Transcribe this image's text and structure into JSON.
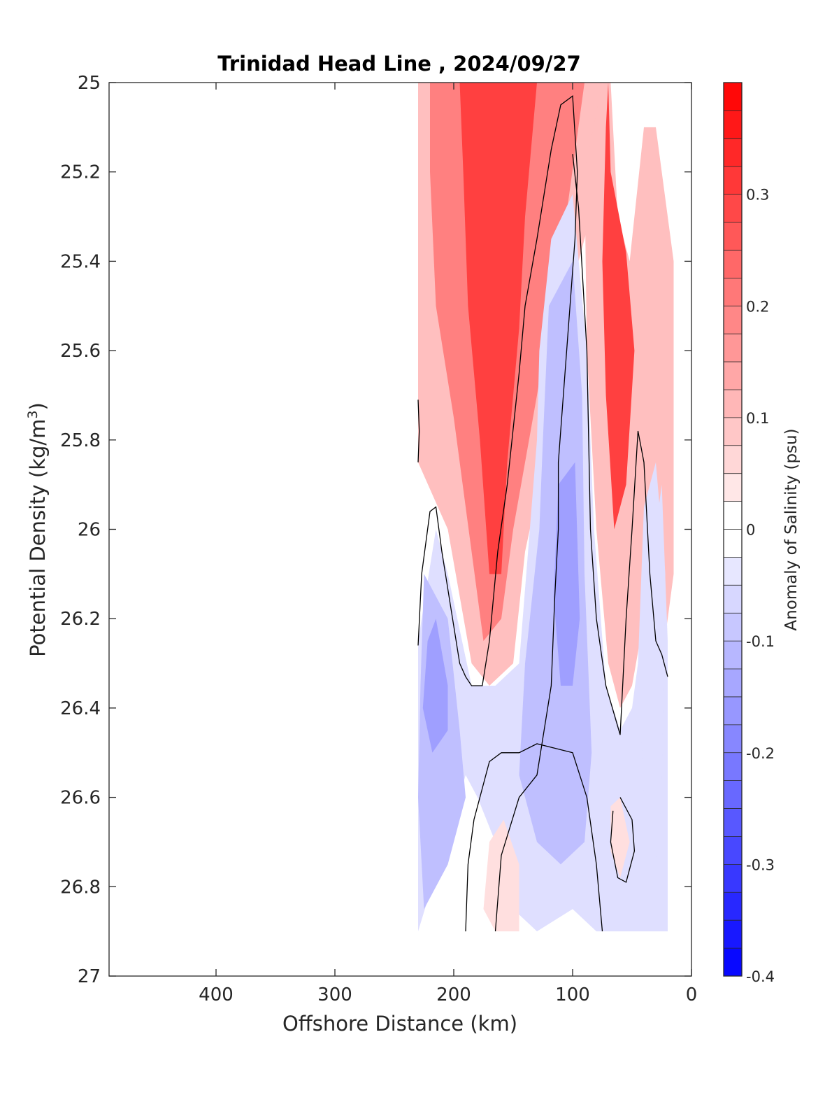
{
  "chart_data": {
    "type": "contour-section",
    "title": "Trinidad Head Line , 2024/09/27",
    "xlabel": "Offshore Distance (km)",
    "ylabel": "Potential Density (kg/m",
    "ylabel_sup": "3",
    "ylabel_close": ")",
    "xlim": [
      490,
      0
    ],
    "ylim": [
      25,
      27
    ],
    "x_reversed": true,
    "y_reversed": true,
    "xticks": [
      400,
      300,
      200,
      100,
      0
    ],
    "yticks": [
      25,
      25.2,
      25.4,
      25.6,
      25.8,
      26,
      26.2,
      26.4,
      26.6,
      26.8,
      27
    ],
    "ytick_labels": [
      "25",
      "25.2",
      "25.4",
      "25.6",
      "25.8",
      "26",
      "26.2",
      "26.4",
      "26.6",
      "26.8",
      "27"
    ],
    "colorbar": {
      "label": "Anomaly of Salinity (psu)",
      "range": [
        -0.4,
        0.4
      ],
      "step": 0.025,
      "ticks": [
        0.3,
        0.2,
        0.1,
        0,
        -0.1,
        -0.2,
        -0.3,
        -0.4
      ],
      "tick_labels": [
        "0.3",
        "0.2",
        "0.1",
        "0",
        "-0.1",
        "-0.2",
        "-0.3",
        "-0.4"
      ]
    },
    "colors": {
      "positive": "#ff0000",
      "negative": "#0000ff",
      "zero": "#ffffff",
      "contour": "#000000"
    },
    "regions": [
      {
        "kind": "positive",
        "value": 0.1,
        "points": [
          [
            230,
            25
          ],
          [
            75,
            25
          ],
          [
            80,
            25.25
          ],
          [
            110,
            25.55
          ],
          [
            120,
            25.8
          ],
          [
            140,
            26.05
          ],
          [
            150,
            26.3
          ],
          [
            170,
            26.35
          ],
          [
            185,
            26.3
          ],
          [
            205,
            26
          ],
          [
            230,
            25.85
          ]
        ]
      },
      {
        "kind": "positive",
        "value": 0.2,
        "points": [
          [
            220,
            25
          ],
          [
            90,
            25
          ],
          [
            108,
            25.35
          ],
          [
            130,
            25.7
          ],
          [
            150,
            26.0
          ],
          [
            160,
            26.2
          ],
          [
            175,
            26.25
          ],
          [
            185,
            26.05
          ],
          [
            200,
            25.75
          ],
          [
            215,
            25.5
          ],
          [
            220,
            25.2
          ]
        ]
      },
      {
        "kind": "positive",
        "value": 0.3,
        "points": [
          [
            195,
            25
          ],
          [
            130,
            25
          ],
          [
            140,
            25.3
          ],
          [
            145,
            25.55
          ],
          [
            155,
            25.85
          ],
          [
            160,
            26.1
          ],
          [
            170,
            26.1
          ],
          [
            178,
            25.8
          ],
          [
            188,
            25.5
          ],
          [
            192,
            25.2
          ]
        ]
      },
      {
        "kind": "positive",
        "value": 0.1,
        "points": [
          [
            75,
            25
          ],
          [
            68,
            25
          ],
          [
            62,
            25.3
          ],
          [
            52,
            25.4
          ],
          [
            40,
            25.1
          ],
          [
            30,
            25.1
          ],
          [
            15,
            25.4
          ],
          [
            15,
            26.1
          ],
          [
            25,
            26.3
          ],
          [
            40,
            26.2
          ],
          [
            50,
            26.35
          ],
          [
            60,
            26.4
          ],
          [
            70,
            26.3
          ],
          [
            80,
            26.0
          ],
          [
            88,
            25.6
          ],
          [
            90,
            25.2
          ]
        ]
      },
      {
        "kind": "positive",
        "value": 0.3,
        "points": [
          [
            70,
            25
          ],
          [
            68,
            25.2
          ],
          [
            55,
            25.38
          ],
          [
            48,
            25.6
          ],
          [
            55,
            25.9
          ],
          [
            65,
            26.0
          ],
          [
            72,
            25.7
          ],
          [
            75,
            25.4
          ],
          [
            72,
            25.1
          ]
        ]
      },
      {
        "kind": "negative",
        "value": -0.05,
        "points": [
          [
            130,
            25.8
          ],
          [
            128,
            25.6
          ],
          [
            118,
            25.35
          ],
          [
            100,
            25.25
          ],
          [
            88,
            25.6
          ],
          [
            82,
            26.0
          ],
          [
            72,
            26.35
          ],
          [
            60,
            26.45
          ],
          [
            50,
            26.4
          ],
          [
            40,
            26.2
          ],
          [
            30,
            26.0
          ],
          [
            25,
            25.9
          ],
          [
            20,
            26.25
          ],
          [
            20,
            26.9
          ],
          [
            80,
            26.9
          ],
          [
            100,
            26.85
          ],
          [
            130,
            26.9
          ],
          [
            150,
            26.85
          ],
          [
            165,
            26.7
          ],
          [
            180,
            26.6
          ],
          [
            190,
            26.55
          ],
          [
            230,
            26.9
          ],
          [
            230,
            26.25
          ],
          [
            215,
            26.0
          ],
          [
            205,
            26.1
          ],
          [
            185,
            26.35
          ],
          [
            165,
            26.35
          ],
          [
            145,
            26.3
          ]
        ]
      },
      {
        "kind": "negative",
        "value": -0.1,
        "points": [
          [
            120,
            25.5
          ],
          [
            100,
            25.4
          ],
          [
            92,
            25.7
          ],
          [
            90,
            26.1
          ],
          [
            84,
            26.5
          ],
          [
            90,
            26.7
          ],
          [
            110,
            26.75
          ],
          [
            130,
            26.7
          ],
          [
            145,
            26.55
          ],
          [
            140,
            26.3
          ],
          [
            128,
            26.0
          ],
          [
            125,
            25.8
          ]
        ]
      },
      {
        "kind": "negative",
        "value": -0.15,
        "points": [
          [
            112,
            25.9
          ],
          [
            98,
            25.85
          ],
          [
            94,
            26.2
          ],
          [
            100,
            26.35
          ],
          [
            110,
            26.35
          ],
          [
            116,
            26.15
          ]
        ]
      },
      {
        "kind": "negative",
        "value": -0.1,
        "points": [
          [
            225,
            26.1
          ],
          [
            205,
            26.2
          ],
          [
            195,
            26.45
          ],
          [
            190,
            26.6
          ],
          [
            205,
            26.75
          ],
          [
            225,
            26.85
          ],
          [
            230,
            26.6
          ],
          [
            228,
            26.35
          ]
        ]
      },
      {
        "kind": "negative",
        "value": -0.15,
        "points": [
          [
            215,
            26.2
          ],
          [
            205,
            26.35
          ],
          [
            205,
            26.45
          ],
          [
            218,
            26.5
          ],
          [
            226,
            26.4
          ],
          [
            222,
            26.25
          ]
        ]
      },
      {
        "kind": "negative",
        "value": -0.05,
        "points": [
          [
            40,
            25.95
          ],
          [
            30,
            25.85
          ],
          [
            22,
            26.1
          ],
          [
            25,
            26.6
          ],
          [
            30,
            26.75
          ],
          [
            40,
            26.6
          ],
          [
            45,
            26.3
          ]
        ]
      },
      {
        "kind": "positive",
        "value": 0.05,
        "points": [
          [
            170,
            26.7
          ],
          [
            158,
            26.65
          ],
          [
            145,
            26.75
          ],
          [
            145,
            26.9
          ],
          [
            165,
            26.9
          ],
          [
            175,
            26.85
          ]
        ]
      },
      {
        "kind": "positive",
        "value": 0.05,
        "points": [
          [
            68,
            26.62
          ],
          [
            60,
            26.6
          ],
          [
            52,
            26.7
          ],
          [
            60,
            26.78
          ],
          [
            68,
            26.72
          ]
        ]
      }
    ],
    "contours": [
      [
        [
          230,
          25.71
        ],
        [
          229,
          25.78
        ],
        [
          230,
          25.85
        ]
      ],
      [
        [
          230,
          26.26
        ],
        [
          227,
          26.1
        ],
        [
          220,
          25.96
        ],
        [
          215,
          25.95
        ],
        [
          210,
          26.05
        ],
        [
          195,
          26.3
        ],
        [
          190,
          26.33
        ],
        [
          185,
          26.35
        ],
        [
          176,
          26.35
        ],
        [
          170,
          26.25
        ],
        [
          163,
          26.05
        ],
        [
          155,
          25.9
        ],
        [
          145,
          25.65
        ],
        [
          140,
          25.5
        ],
        [
          130,
          25.35
        ],
        [
          118,
          25.15
        ],
        [
          110,
          25.05
        ],
        [
          100,
          25.03
        ],
        [
          96,
          25.2
        ],
        [
          98,
          25.35
        ],
        [
          105,
          25.6
        ],
        [
          112,
          25.85
        ],
        [
          112,
          26.0
        ],
        [
          115,
          26.15
        ],
        [
          118,
          26.35
        ],
        [
          130,
          26.55
        ],
        [
          145,
          26.6
        ],
        [
          160,
          26.73
        ],
        [
          165,
          26.9
        ]
      ],
      [
        [
          190,
          26.9
        ],
        [
          188,
          26.75
        ],
        [
          183,
          26.65
        ],
        [
          170,
          26.52
        ],
        [
          160,
          26.5
        ],
        [
          145,
          26.5
        ],
        [
          130,
          26.48
        ],
        [
          100,
          26.5
        ],
        [
          88,
          26.6
        ],
        [
          80,
          26.75
        ],
        [
          75,
          26.9
        ]
      ],
      [
        [
          100,
          25.16
        ],
        [
          95,
          25.28
        ],
        [
          88,
          25.6
        ],
        [
          85,
          26.0
        ],
        [
          80,
          26.2
        ],
        [
          72,
          26.35
        ],
        [
          60,
          26.46
        ],
        [
          55,
          26.2
        ],
        [
          50,
          26.0
        ],
        [
          45,
          25.78
        ],
        [
          40,
          25.85
        ],
        [
          35,
          26.1
        ],
        [
          30,
          26.25
        ],
        [
          25,
          26.28
        ],
        [
          20,
          26.33
        ]
      ],
      [
        [
          60,
          26.6
        ],
        [
          50,
          26.65
        ],
        [
          48,
          26.72
        ],
        [
          55,
          26.79
        ],
        [
          62,
          26.78
        ],
        [
          68,
          26.7
        ],
        [
          66,
          26.63
        ]
      ]
    ]
  }
}
